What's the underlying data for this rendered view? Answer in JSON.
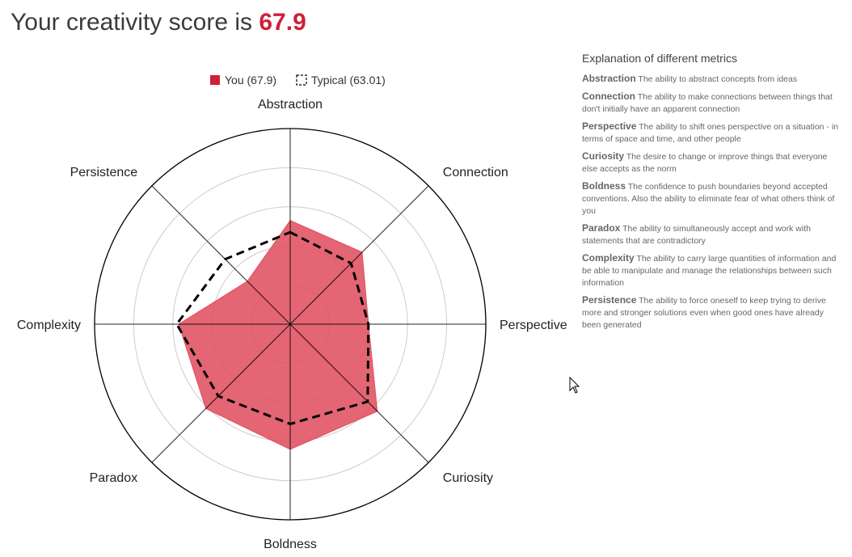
{
  "header": {
    "title_prefix": "Your creativity score is",
    "score": "67.9"
  },
  "colors": {
    "accent": "#d0203a",
    "you_fill": "#e05060",
    "grid": "#cccccc",
    "axis": "#000000"
  },
  "chart_data": {
    "type": "radar",
    "categories": [
      "Abstraction",
      "Connection",
      "Perspective",
      "Curiosity",
      "Boldness",
      "Paradox",
      "Complexity",
      "Persistence"
    ],
    "max": 100,
    "rings": 5,
    "series": [
      {
        "name": "You (67.9)",
        "values": [
          53,
          52,
          40,
          63,
          64,
          61,
          57,
          31
        ],
        "style": "filled",
        "color": "#d0203a"
      },
      {
        "name": "Typical (63.01)",
        "values": [
          47,
          44,
          40,
          56,
          51,
          52,
          58,
          47
        ],
        "style": "dashed",
        "color": "#000000"
      }
    ],
    "legend_position": "top-center"
  },
  "explanation": {
    "title": "Explanation of different metrics",
    "items": [
      {
        "name": "Abstraction",
        "description": "The ability to abstract concepts from ideas"
      },
      {
        "name": "Connection",
        "description": "The ability to make connections between things that don't initially have an apparent connection"
      },
      {
        "name": "Perspective",
        "description": "The ability to shift ones perspective on a situation - in terms of space and time, and other people"
      },
      {
        "name": "Curiosity",
        "description": "The desire to change or improve things that everyone else accepts as the norm"
      },
      {
        "name": "Boldness",
        "description": "The confidence to push boundaries beyond accepted conventions. Also the ability to eliminate fear of what others think of you"
      },
      {
        "name": "Paradox",
        "description": "The ability to simultaneously accept and work with statements that are contradictory"
      },
      {
        "name": "Complexity",
        "description": "The ability to carry large quantities of information and be able to manipulate and manage the relationships between such information"
      },
      {
        "name": "Persistence",
        "description": "The ability to force oneself to keep trying to derive more and stronger solutions even when good ones have already been generated"
      }
    ]
  }
}
